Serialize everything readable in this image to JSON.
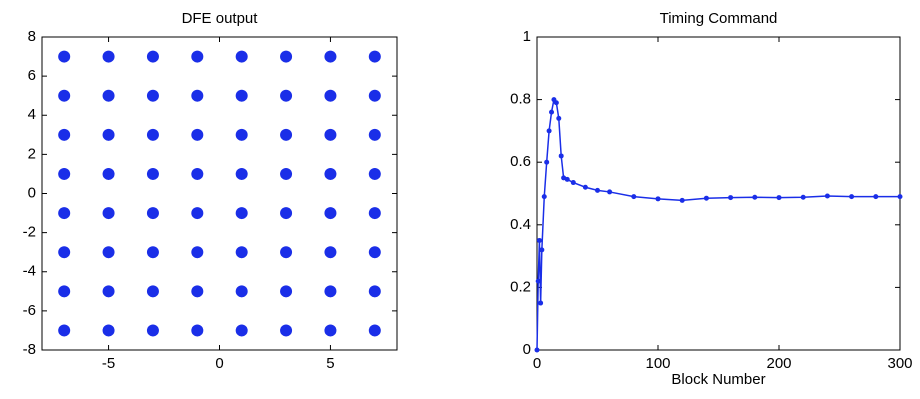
{
  "chart_data": [
    {
      "type": "scatter",
      "title": "DFE output",
      "color": "#1a2ee8",
      "x": [
        -7,
        -5,
        -3,
        -1,
        1,
        3,
        5,
        7,
        -7,
        -5,
        -3,
        -1,
        1,
        3,
        5,
        7,
        -7,
        -5,
        -3,
        -1,
        1,
        3,
        5,
        7,
        -7,
        -5,
        -3,
        -1,
        1,
        3,
        5,
        7,
        -7,
        -5,
        -3,
        -1,
        1,
        3,
        5,
        7,
        -7,
        -5,
        -3,
        -1,
        1,
        3,
        5,
        7,
        -7,
        -5,
        -3,
        -1,
        1,
        3,
        5,
        7,
        -7,
        -5,
        -3,
        -1,
        1,
        3,
        5,
        7
      ],
      "y": [
        7,
        7,
        7,
        7,
        7,
        7,
        7,
        7,
        5,
        5,
        5,
        5,
        5,
        5,
        5,
        5,
        3,
        3,
        3,
        3,
        3,
        3,
        3,
        3,
        1,
        1,
        1,
        1,
        1,
        1,
        1,
        1,
        -1,
        -1,
        -1,
        -1,
        -1,
        -1,
        -1,
        -1,
        -3,
        -3,
        -3,
        -3,
        -3,
        -3,
        -3,
        -3,
        -5,
        -5,
        -5,
        -5,
        -5,
        -5,
        -5,
        -5,
        -7,
        -7,
        -7,
        -7,
        -7,
        -7,
        -7,
        -7
      ],
      "xlim": [
        -8,
        8
      ],
      "xticks": [
        -5,
        0,
        5
      ],
      "ylim": [
        -8,
        8
      ],
      "yticks": [
        -8,
        -6,
        -4,
        -2,
        0,
        2,
        4,
        6,
        8
      ]
    },
    {
      "type": "line",
      "title": "Timing Command",
      "x_label": "Block Number",
      "color": "#1a2ee8",
      "x": [
        0,
        1,
        2,
        3,
        4,
        6,
        8,
        10,
        12,
        14,
        16,
        18,
        20,
        22,
        25,
        30,
        40,
        50,
        60,
        80,
        100,
        120,
        140,
        160,
        180,
        200,
        220,
        240,
        260,
        280,
        300
      ],
      "y": [
        0,
        0.22,
        0.35,
        0.15,
        0.32,
        0.49,
        0.6,
        0.7,
        0.76,
        0.8,
        0.79,
        0.74,
        0.62,
        0.55,
        0.545,
        0.535,
        0.52,
        0.51,
        0.505,
        0.49,
        0.483,
        0.478,
        0.485,
        0.487,
        0.488,
        0.487,
        0.488,
        0.492,
        0.49,
        0.49,
        0.49
      ],
      "xlim": [
        0,
        300
      ],
      "xticks": [
        0,
        100,
        200,
        300
      ],
      "ylim": [
        0,
        1
      ],
      "yticks": [
        0,
        0.2,
        0.4,
        0.6,
        0.8,
        1
      ]
    }
  ]
}
